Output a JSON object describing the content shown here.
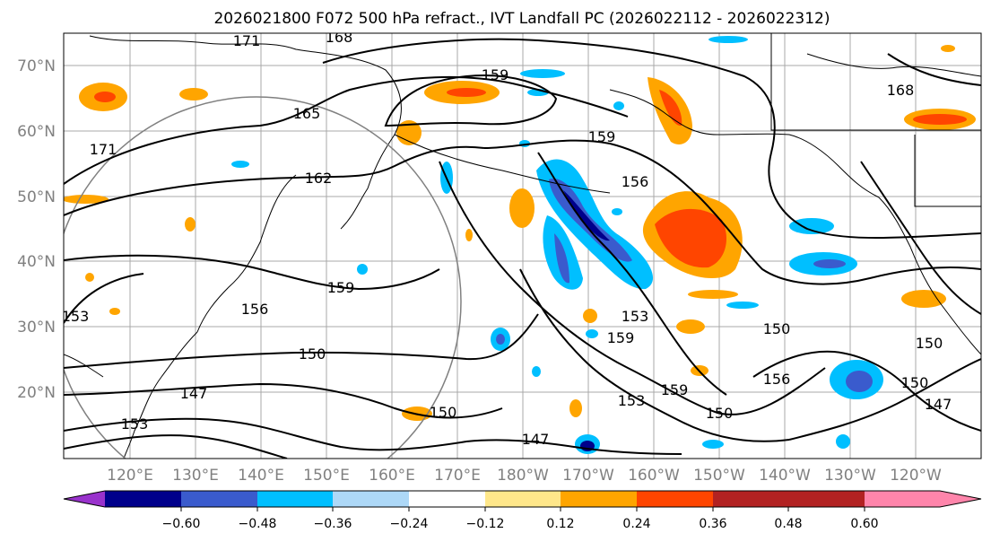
{
  "title": "2026021800 F072 500 hPa refract., IVT Landfall PC (2026022112 - 2026022312)",
  "lat_labels": [
    "70°N",
    "60°N",
    "50°N",
    "40°N",
    "30°N",
    "20°N"
  ],
  "lon_labels": [
    "120°E",
    "130°E",
    "140°E",
    "150°E",
    "160°E",
    "170°E",
    "180°W",
    "170°W",
    "160°W",
    "150°W",
    "140°W",
    "130°W",
    "120°W"
  ],
  "colorbar": {
    "ticks": [
      "−0.60",
      "−0.48",
      "−0.36",
      "−0.24",
      "−0.12",
      "0.12",
      "0.24",
      "0.36",
      "0.48",
      "0.60"
    ],
    "colors": [
      "#9932cc",
      "#00008b",
      "#3a5bcd",
      "#00bfff",
      "#add8f7",
      "#ffffff",
      "#ffe78a",
      "#ffa500",
      "#ff4500",
      "#b22222",
      "#ff85ab"
    ]
  },
  "contour_labels": [
    "171",
    "168",
    "159",
    "165",
    "162",
    "171",
    "159",
    "156",
    "159",
    "156",
    "153",
    "150",
    "147",
    "150",
    "153",
    "159",
    "153",
    "150",
    "150",
    "156",
    "150",
    "150",
    "147",
    "147",
    "168",
    "153",
    "159"
  ],
  "palette": {
    "orange": "#ffa500",
    "red": "#ff4500",
    "yellow": "#ffe78a",
    "blue": "#00bfff",
    "lightblue": "#add8f7",
    "royal": "#3a5bcd",
    "navy": "#00008b"
  }
}
